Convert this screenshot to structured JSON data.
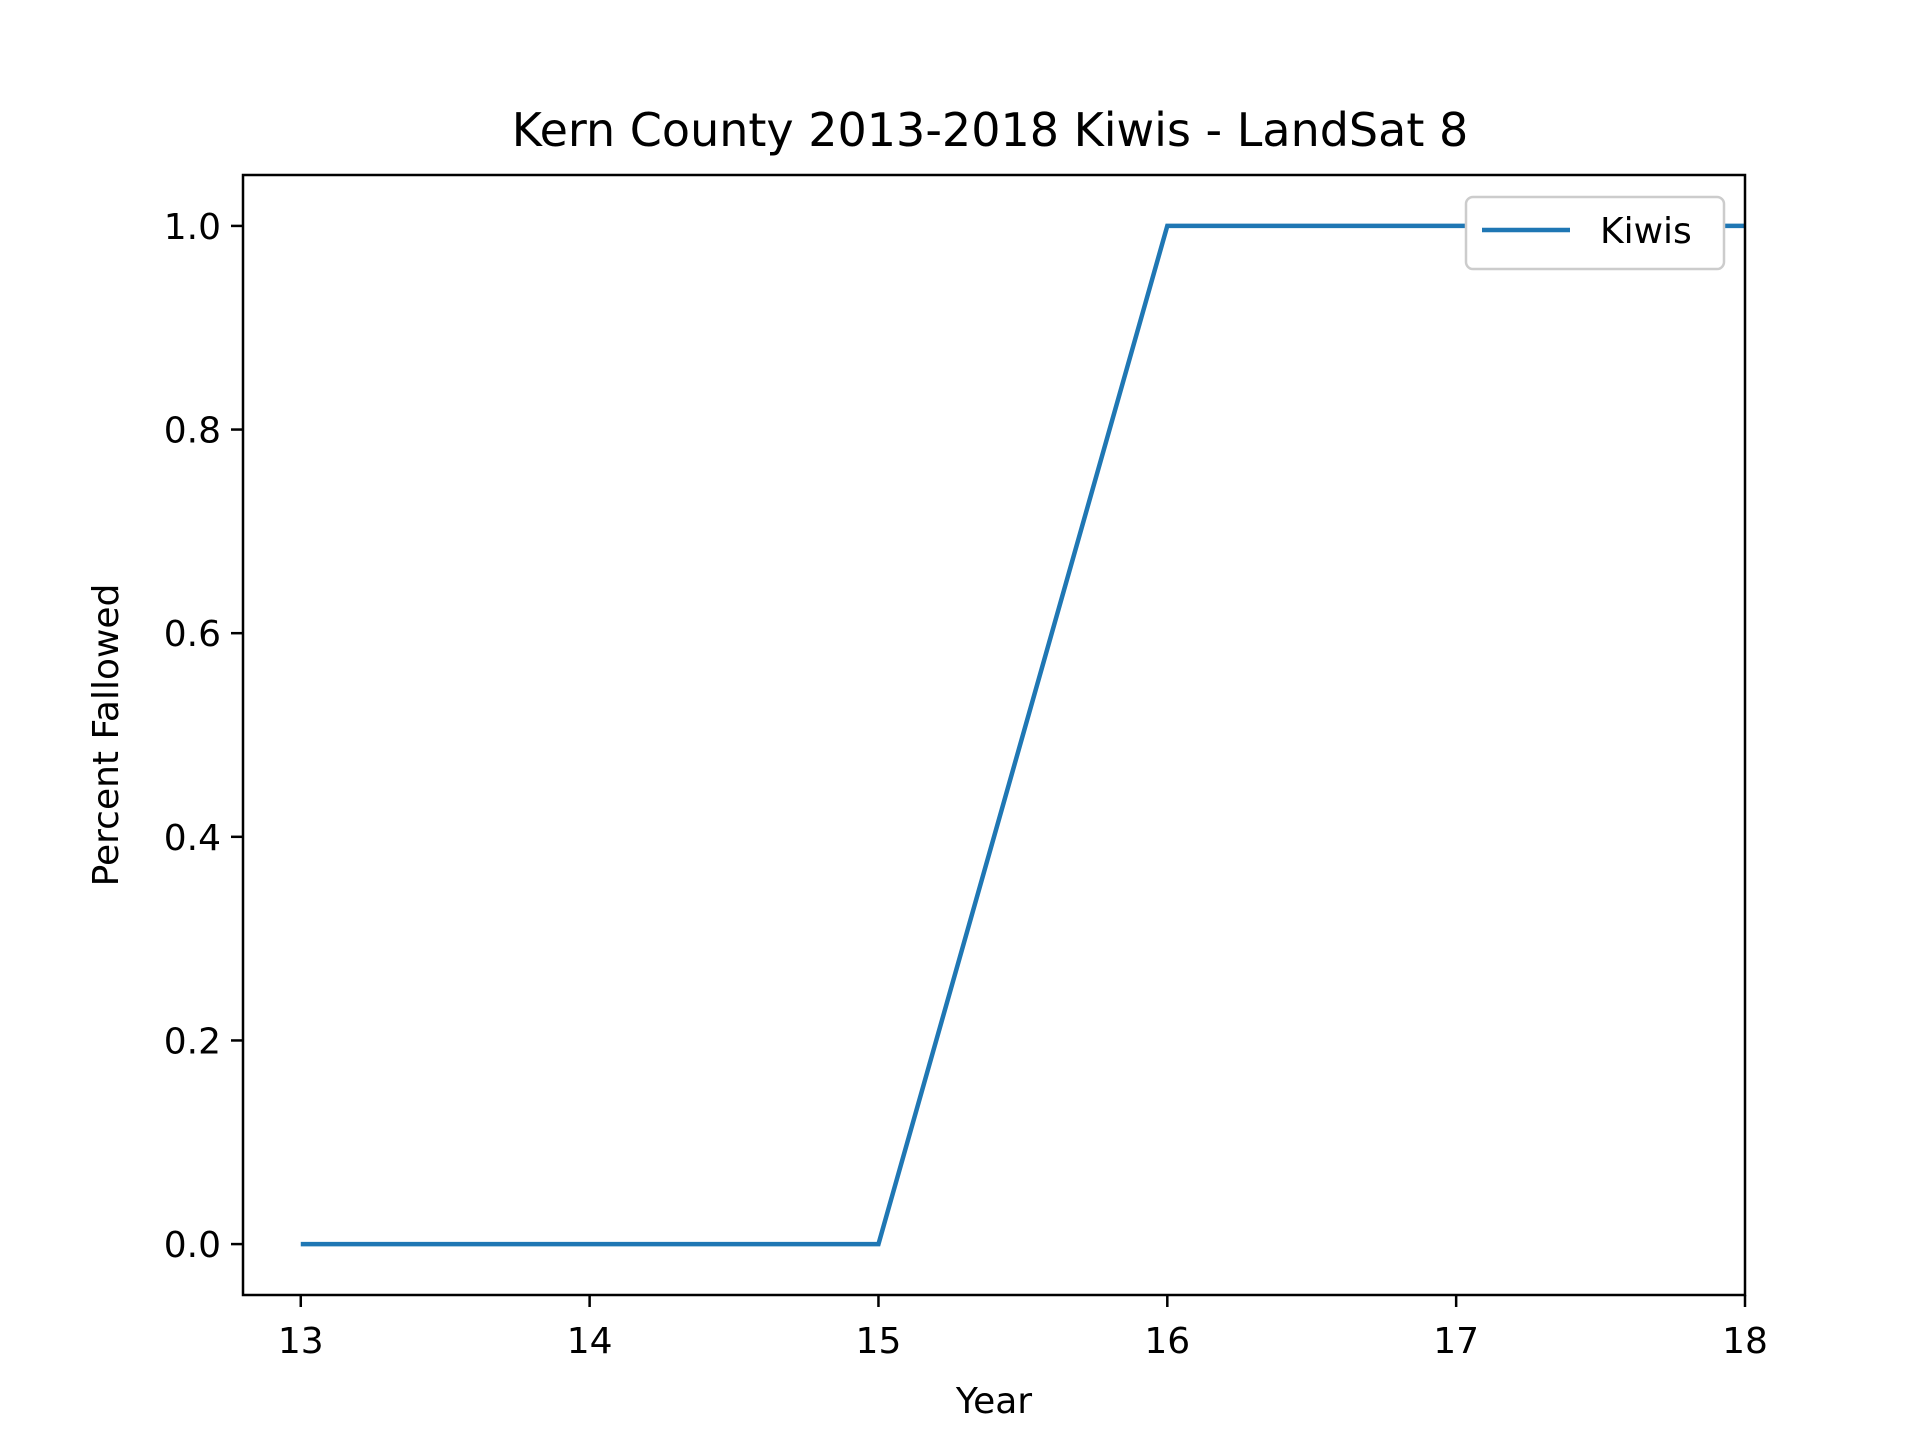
{
  "chart_data": {
    "type": "line",
    "title": "Kern County 2013-2018 Kiwis - LandSat 8",
    "xlabel": "Year",
    "ylabel": "Percent Fallowed",
    "x": [
      13,
      14,
      15,
      16,
      17,
      18
    ],
    "series": [
      {
        "name": "Kiwis",
        "color": "#1f77b4",
        "values": [
          0.0,
          0.0,
          0.0,
          1.0,
          1.0,
          1.0
        ]
      }
    ],
    "xlim": [
      12.8,
      18
    ],
    "ylim": [
      -0.05,
      1.05
    ],
    "xticks": [
      13,
      14,
      15,
      16,
      17,
      18
    ],
    "xtick_labels": [
      "13",
      "14",
      "15",
      "16",
      "17",
      "18"
    ],
    "yticks": [
      0.0,
      0.2,
      0.4,
      0.6,
      0.8,
      1.0
    ],
    "ytick_labels": [
      "0.0",
      "0.2",
      "0.4",
      "0.6",
      "0.8",
      "1.0"
    ],
    "grid": false,
    "legend_position": "upper right"
  }
}
